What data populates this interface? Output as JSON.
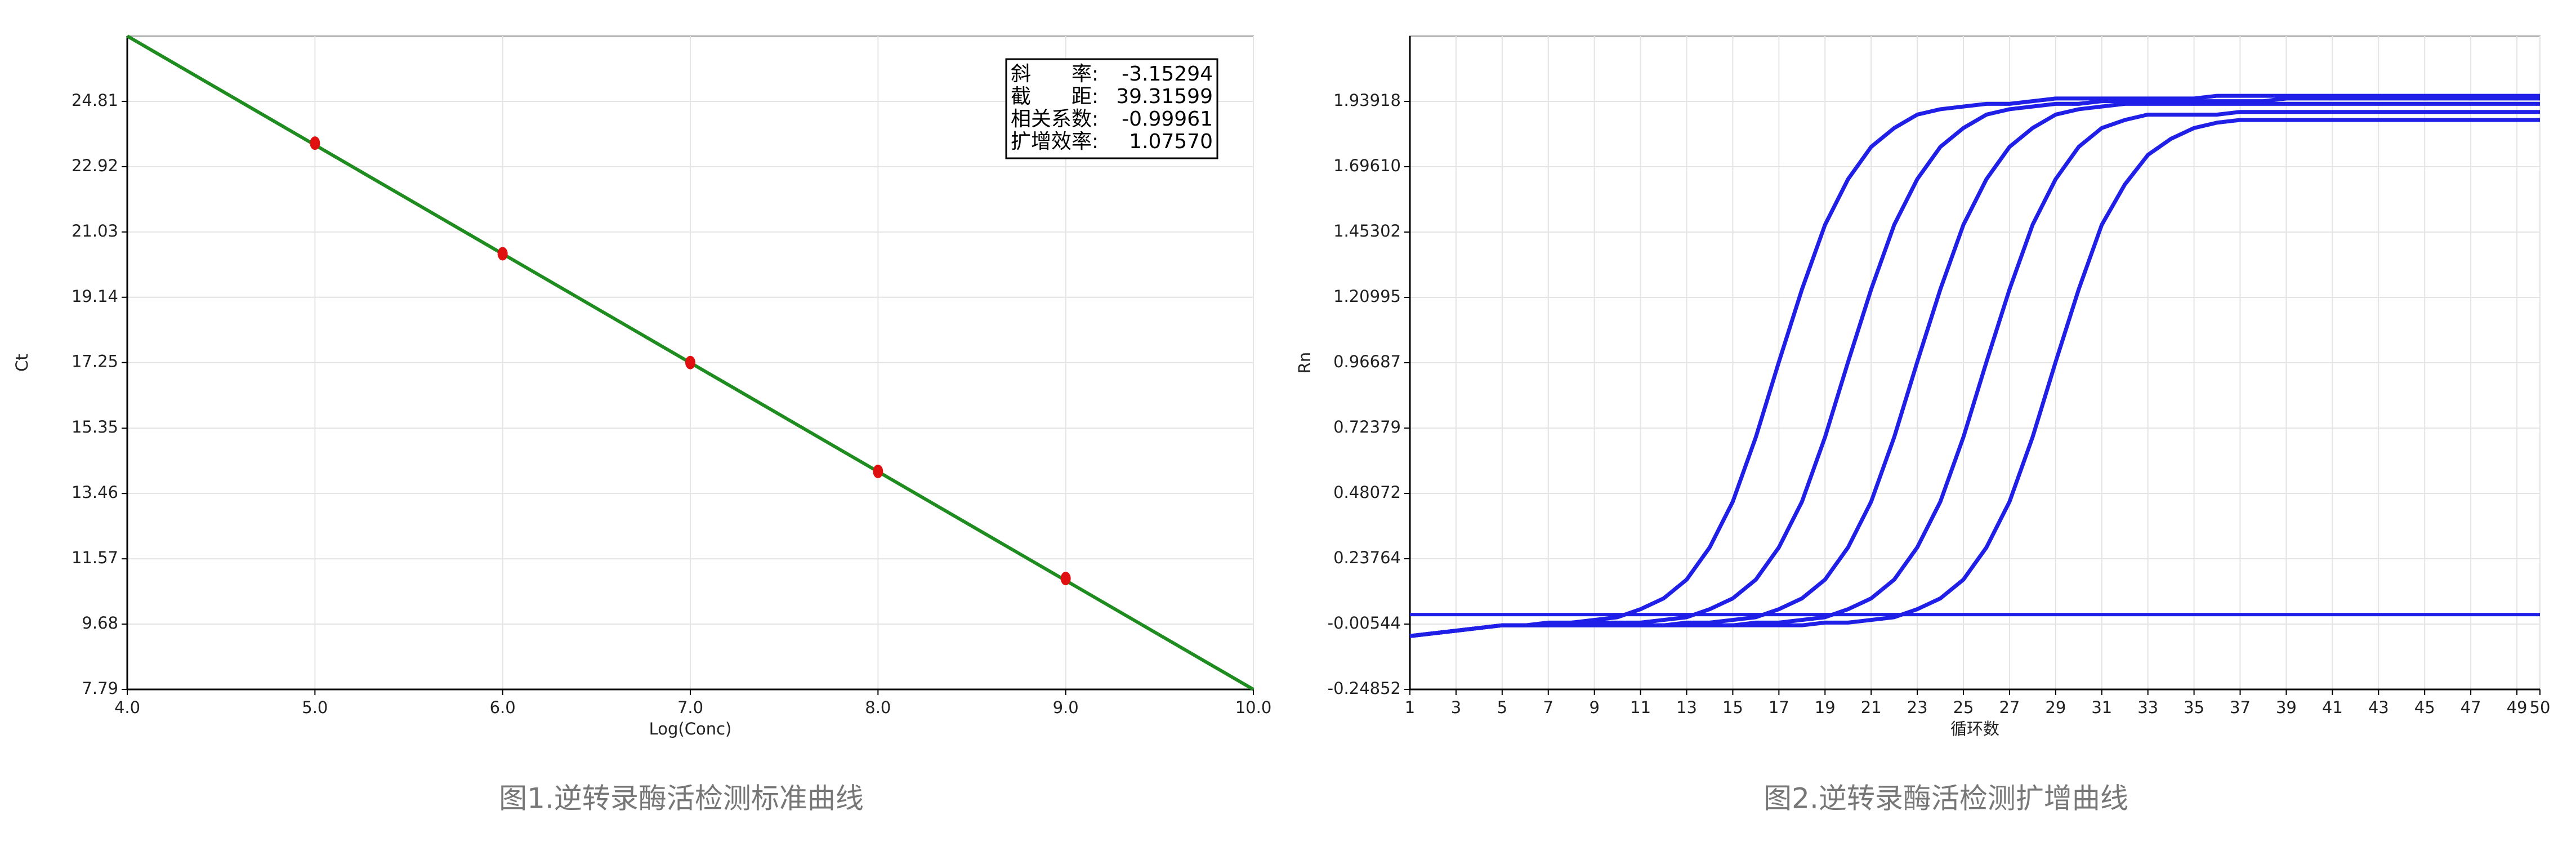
{
  "chart_data": [
    {
      "type": "scatter",
      "title": "图1.逆转录酶活检测标准曲线",
      "x_label": "Log(Conc)",
      "y_label": "Ct",
      "x": [
        5,
        6,
        7,
        8,
        9
      ],
      "values": [
        23.6,
        20.4,
        17.25,
        14.1,
        11.0
      ],
      "color": "#e01010",
      "fit_line": {
        "x": [
          4,
          10
        ],
        "values": [
          26.7,
          7.79
        ],
        "color": "#1e8c1e"
      },
      "stats": [
        {
          "label": "斜　　率:",
          "value": "-3.15294"
        },
        {
          "label": "截　　距:",
          "value": "39.31599"
        },
        {
          "label": "相关系数:",
          "value": "-0.99961"
        },
        {
          "label": "扩增效率:",
          "value": "1.07570"
        }
      ],
      "xlim": [
        4,
        10
      ],
      "xticks": [
        {
          "value": 4,
          "label": "4.0"
        },
        {
          "value": 5,
          "label": "5.0"
        },
        {
          "value": 6,
          "label": "6.0"
        },
        {
          "value": 7,
          "label": "7.0"
        },
        {
          "value": 8,
          "label": "8.0"
        },
        {
          "value": 9,
          "label": "9.0"
        },
        {
          "value": 10,
          "label": "10.0"
        }
      ],
      "ylim": [
        7.79,
        26.7
      ],
      "yticks": [
        7.79,
        9.68,
        11.57,
        13.46,
        15.35,
        17.25,
        19.14,
        21.03,
        22.92,
        24.81
      ],
      "grid": true
    },
    {
      "type": "line",
      "title": "图2.逆转录酶活检测扩增曲线",
      "x_label": "循环数",
      "y_label": "Rn",
      "x": [
        1,
        2,
        3,
        4,
        5,
        6,
        7,
        8,
        9,
        10,
        11,
        12,
        13,
        14,
        15,
        16,
        17,
        18,
        19,
        20,
        21,
        22,
        23,
        24,
        25,
        26,
        27,
        28,
        29,
        30,
        31,
        32,
        33,
        34,
        35,
        36,
        37,
        38,
        39,
        40,
        41,
        42,
        43,
        44,
        45,
        46,
        47,
        48,
        49,
        50
      ],
      "series": [
        {
          "color": "#1f1fe8",
          "values": [
            -0.05,
            -0.04,
            -0.03,
            -0.02,
            -0.01,
            -0.01,
            0,
            0,
            0.01,
            0.02,
            0.05,
            0.09,
            0.16,
            0.28,
            0.45,
            0.69,
            0.97,
            1.24,
            1.48,
            1.65,
            1.77,
            1.84,
            1.89,
            1.91,
            1.92,
            1.93,
            1.93,
            1.94,
            1.95,
            1.95,
            1.95,
            1.95,
            1.95,
            1.95,
            1.95,
            1.96,
            1.96,
            1.96,
            1.96,
            1.96,
            1.96,
            1.96,
            1.96,
            1.96,
            1.96,
            1.96,
            1.96,
            1.96,
            1.96,
            1.96
          ]
        },
        {
          "color": "#1f1fe8",
          "values": [
            -0.05,
            -0.04,
            -0.03,
            -0.02,
            -0.01,
            -0.01,
            -0.01,
            0,
            0,
            0,
            0,
            0.01,
            0.02,
            0.05,
            0.09,
            0.16,
            0.28,
            0.45,
            0.69,
            0.97,
            1.24,
            1.48,
            1.65,
            1.77,
            1.84,
            1.89,
            1.91,
            1.92,
            1.93,
            1.93,
            1.94,
            1.94,
            1.94,
            1.94,
            1.94,
            1.94,
            1.94,
            1.94,
            1.95,
            1.95,
            1.95,
            1.95,
            1.95,
            1.95,
            1.95,
            1.95,
            1.95,
            1.95,
            1.95,
            1.95
          ]
        },
        {
          "color": "#1f1fe8",
          "values": [
            -0.05,
            -0.04,
            -0.03,
            -0.02,
            -0.01,
            -0.01,
            -0.01,
            -0.01,
            -0.01,
            -0.01,
            -0.01,
            -0.01,
            0,
            0,
            0.01,
            0.02,
            0.05,
            0.09,
            0.16,
            0.28,
            0.45,
            0.69,
            0.97,
            1.24,
            1.48,
            1.65,
            1.77,
            1.84,
            1.89,
            1.91,
            1.92,
            1.93,
            1.93,
            1.93,
            1.93,
            1.93,
            1.93,
            1.93,
            1.93,
            1.93,
            1.93,
            1.93,
            1.93,
            1.93,
            1.93,
            1.93,
            1.93,
            1.93,
            1.93,
            1.93
          ]
        },
        {
          "color": "#1f1fe8",
          "values": [
            -0.05,
            -0.04,
            -0.03,
            -0.02,
            -0.01,
            -0.01,
            -0.01,
            -0.01,
            -0.01,
            -0.01,
            -0.01,
            -0.01,
            -0.01,
            -0.01,
            -0.01,
            0,
            0,
            0.01,
            0.02,
            0.05,
            0.09,
            0.16,
            0.28,
            0.45,
            0.69,
            0.97,
            1.24,
            1.48,
            1.65,
            1.77,
            1.84,
            1.87,
            1.89,
            1.89,
            1.89,
            1.89,
            1.9,
            1.9,
            1.9,
            1.9,
            1.9,
            1.9,
            1.9,
            1.9,
            1.9,
            1.9,
            1.9,
            1.9,
            1.9,
            1.9
          ]
        },
        {
          "color": "#1f1fe8",
          "values": [
            -0.05,
            -0.04,
            -0.03,
            -0.02,
            -0.01,
            -0.01,
            -0.01,
            -0.01,
            -0.01,
            -0.01,
            -0.01,
            -0.01,
            -0.01,
            -0.01,
            -0.01,
            -0.01,
            -0.01,
            -0.01,
            0,
            0,
            0.01,
            0.02,
            0.05,
            0.09,
            0.16,
            0.28,
            0.45,
            0.69,
            0.97,
            1.24,
            1.48,
            1.63,
            1.74,
            1.8,
            1.84,
            1.86,
            1.87,
            1.87,
            1.87,
            1.87,
            1.87,
            1.87,
            1.87,
            1.87,
            1.87,
            1.87,
            1.87,
            1.87,
            1.87,
            1.87
          ]
        }
      ],
      "threshold": 0.03,
      "threshold_color": "#1f1fe8",
      "xlim": [
        1,
        50
      ],
      "xticks": [
        1,
        3,
        5,
        7,
        9,
        11,
        13,
        15,
        17,
        19,
        21,
        23,
        25,
        27,
        29,
        31,
        33,
        35,
        37,
        39,
        41,
        43,
        45,
        47,
        49,
        50
      ],
      "ylim": [
        -0.24852,
        2.18226
      ],
      "yticks": [
        -0.24852,
        -0.00544,
        0.23764,
        0.48072,
        0.72379,
        0.96687,
        1.20995,
        1.45302,
        {
          "value": 1.6961,
          "label": "1.69610"
        },
        1.93918
      ],
      "grid": true
    }
  ]
}
